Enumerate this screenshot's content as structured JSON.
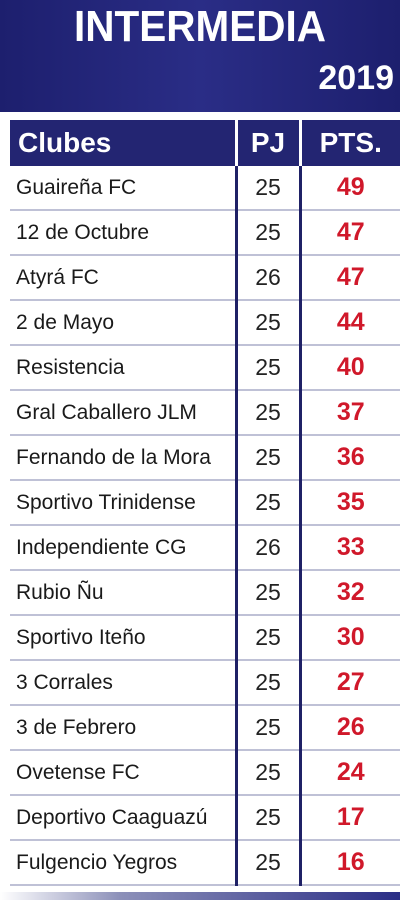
{
  "header": {
    "title": "INTERMEDIA",
    "year": "2019"
  },
  "table": {
    "columns": [
      "Clubes",
      "PJ",
      "PTS."
    ],
    "rows": [
      {
        "club": "Guaireña FC",
        "pj": "25",
        "pts": "49"
      },
      {
        "club": "12 de Octubre",
        "pj": "25",
        "pts": "47"
      },
      {
        "club": "Atyrá FC",
        "pj": "26",
        "pts": "47"
      },
      {
        "club": "2 de Mayo",
        "pj": "25",
        "pts": "44"
      },
      {
        "club": "Resistencia",
        "pj": "25",
        "pts": "40"
      },
      {
        "club": "Gral Caballero JLM",
        "pj": "25",
        "pts": "37"
      },
      {
        "club": "Fernando de la Mora",
        "pj": "25",
        "pts": "36"
      },
      {
        "club": "Sportivo Trinidense",
        "pj": "25",
        "pts": "35"
      },
      {
        "club": "Independiente CG",
        "pj": "26",
        "pts": "33"
      },
      {
        "club": "Rubio Ñu",
        "pj": "25",
        "pts": "32"
      },
      {
        "club": "Sportivo Iteño",
        "pj": "25",
        "pts": "30"
      },
      {
        "club": "3 Corrales",
        "pj": "25",
        "pts": "27"
      },
      {
        "club": "3 de Febrero",
        "pj": "25",
        "pts": "26"
      },
      {
        "club": "Ovetense FC",
        "pj": "25",
        "pts": "24"
      },
      {
        "club": "Deportivo Caaguazú",
        "pj": "25",
        "pts": "17"
      },
      {
        "club": "Fulgencio Yegros",
        "pj": "25",
        "pts": "16"
      }
    ]
  },
  "colors": {
    "header_bg": "#232572",
    "points": "#d0182a",
    "text": "#1a1a1a"
  }
}
